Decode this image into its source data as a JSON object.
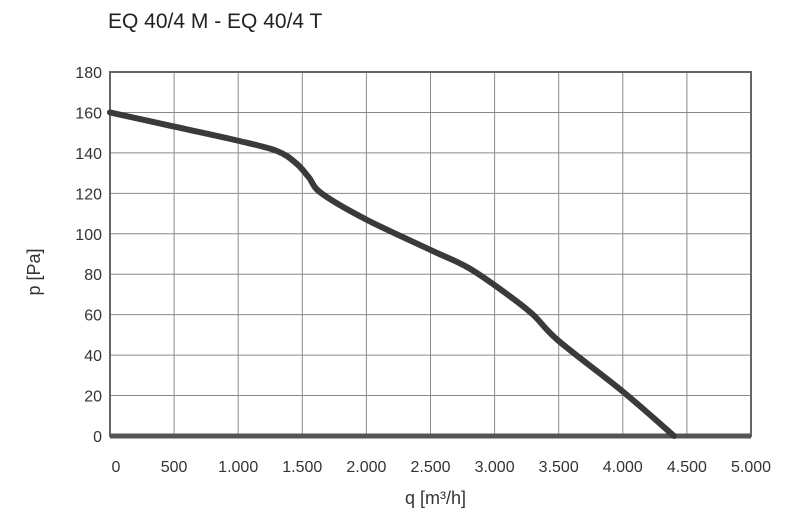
{
  "chart_data": {
    "type": "line",
    "title": "EQ 40/4 M - EQ 40/4 T",
    "xlabel": "q [m³/h]",
    "ylabel": "p [Pa]",
    "xlim": [
      0,
      5000
    ],
    "ylim": [
      0,
      180
    ],
    "x_ticks": [
      0,
      500,
      1000,
      1500,
      2000,
      2500,
      3000,
      3500,
      4000,
      4500,
      5000
    ],
    "x_tick_labels": [
      "0",
      "500",
      "1.000",
      "1.500",
      "2.000",
      "2.500",
      "3.000",
      "3.500",
      "4.000",
      "4.500",
      "5.000"
    ],
    "y_ticks": [
      0,
      20,
      40,
      60,
      80,
      100,
      120,
      140,
      160,
      180
    ],
    "y_tick_labels": [
      "0",
      "20",
      "40",
      "60",
      "80",
      "100",
      "120",
      "140",
      "160",
      "180"
    ],
    "grid": true,
    "series": [
      {
        "x": [
          0,
          500,
          1000,
          1300,
          1450,
          1550,
          1650,
          2000,
          2500,
          2800,
          3100,
          3300,
          3500,
          4000,
          4400
        ],
        "y": [
          160,
          153,
          146,
          141,
          135,
          128,
          120,
          107,
          92,
          83,
          70,
          60,
          47,
          22,
          0
        ]
      }
    ],
    "colors": {
      "line": "#3a3a3a",
      "grid": "#8a8a8a",
      "frame": "#666666",
      "baseline": "#555555"
    }
  }
}
